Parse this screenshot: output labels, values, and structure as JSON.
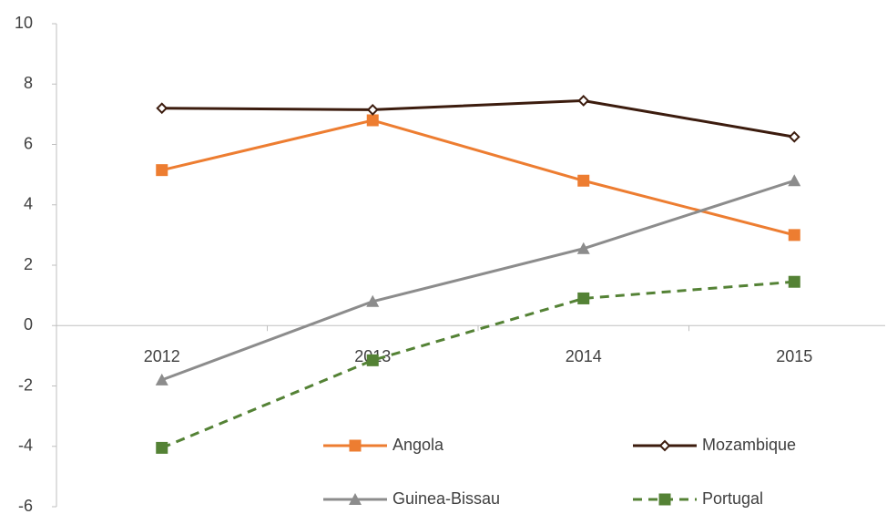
{
  "chart_data": {
    "type": "line",
    "categories": [
      "2012",
      "2013",
      "2014",
      "2015"
    ],
    "series": [
      {
        "name": "Angola",
        "color": "#ed7d31",
        "marker": "square",
        "line_style": "solid",
        "values": [
          5.15,
          6.8,
          4.8,
          3.0
        ]
      },
      {
        "name": "Mozambique",
        "color": "#3c1c0e",
        "marker": "diamond",
        "line_style": "solid",
        "values": [
          7.2,
          7.15,
          7.45,
          6.25
        ]
      },
      {
        "name": "Guinea-Bissau",
        "color": "#8c8c8c",
        "marker": "triangle",
        "line_style": "solid",
        "values": [
          -1.8,
          0.8,
          2.55,
          4.8
        ]
      },
      {
        "name": "Portugal",
        "color": "#548235",
        "marker": "square",
        "line_style": "dashed",
        "values": [
          -4.05,
          -1.15,
          0.9,
          1.45
        ]
      }
    ],
    "ylim": [
      -6,
      10
    ],
    "yticks": [
      -6,
      -4,
      -2,
      0,
      2,
      4,
      6,
      8,
      10
    ],
    "legend": "bottom"
  }
}
